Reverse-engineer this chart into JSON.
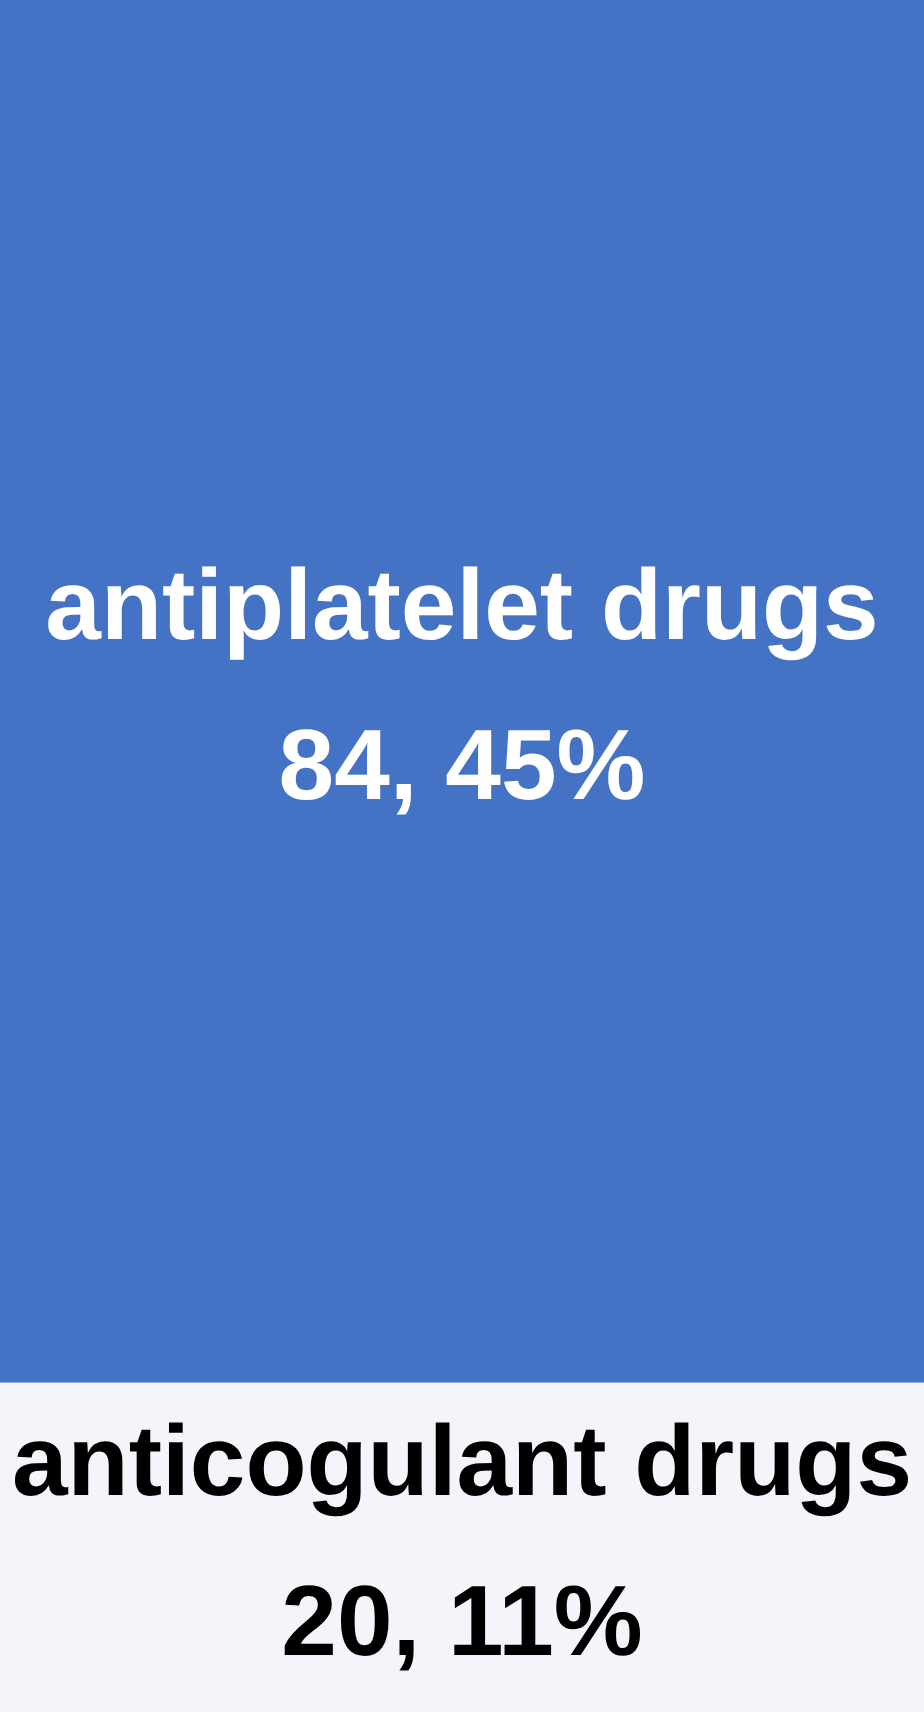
{
  "chart_data": {
    "type": "other",
    "categories": [
      "antiplatelet drugs",
      "anticogulant drugs"
    ],
    "values": [
      84,
      20
    ],
    "value_labels": [
      "84, 45%",
      "20, 11%"
    ],
    "colors": [
      "#4472c4",
      "#f3f5fa"
    ]
  }
}
